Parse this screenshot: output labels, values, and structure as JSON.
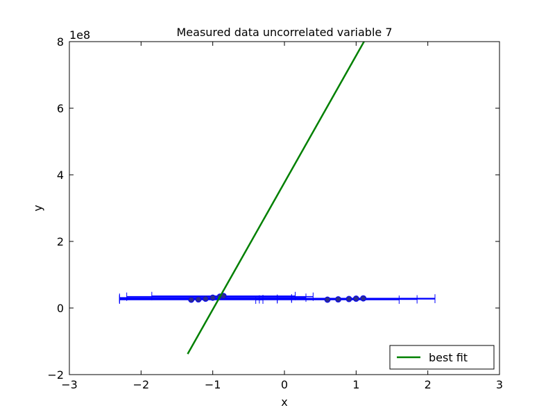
{
  "chart_data": {
    "type": "errorbar",
    "title": "Measured data uncorrelated variable 7",
    "xlabel": "x",
    "ylabel": "y",
    "y_offset_label": "1e8",
    "xlim": [
      -3,
      3
    ],
    "ylim": [
      -200000000,
      800000000
    ],
    "xticks": [
      {
        "value": -3,
        "label": "−3"
      },
      {
        "value": -2,
        "label": "−2"
      },
      {
        "value": -1,
        "label": "−1"
      },
      0,
      1,
      2,
      3
    ],
    "yticks": [
      {
        "value": -200000000,
        "label": "−2"
      },
      {
        "value": 0,
        "label": "0"
      },
      {
        "value": 200000000,
        "label": "2"
      },
      {
        "value": 400000000,
        "label": "4"
      },
      {
        "value": 600000000,
        "label": "6"
      },
      {
        "value": 800000000,
        "label": "8"
      }
    ],
    "legend": "lower right",
    "series": [
      {
        "name": "best fit",
        "type": "line",
        "color": "#008000",
        "x": [
          -1.35,
          1.11
        ],
        "values": [
          -138000000,
          800000000
        ]
      },
      {
        "type": "errorbar",
        "color": "#0000ff",
        "marker_color": "#2b2b8f",
        "x": [
          -1.3,
          -1.2,
          -1.1,
          -1.0,
          -0.9,
          -0.85,
          0.6,
          0.75,
          0.9,
          1.0,
          1.1
        ],
        "values": [
          25000000,
          26000000,
          28000000,
          31000000,
          34000000,
          36000000,
          25000000,
          26000000,
          27000000,
          28000000,
          29000000
        ],
        "xerr": [
          1.0,
          1.1,
          1.2,
          1.3,
          1.3,
          1.0,
          1.0,
          1.1,
          1.2,
          1.1,
          1.0
        ]
      }
    ]
  }
}
